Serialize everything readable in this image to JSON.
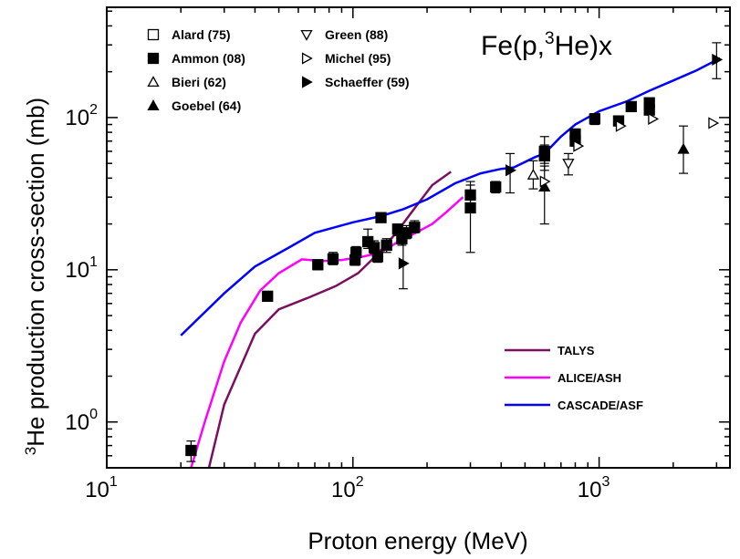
{
  "chart_data": {
    "type": "scatter",
    "title_main": "Fe(p,",
    "title_sup": "3",
    "title_rest": "He)x",
    "xlabel": "Proton energy (MeV)",
    "ylabel_sup": "3",
    "ylabel_main": "He production cross-section (mb)",
    "x_scale": "log",
    "y_scale": "log",
    "xlim": [
      10,
      3400
    ],
    "ylim": [
      0.5,
      530
    ],
    "x_ticks": [
      {
        "value": 10,
        "base": "10",
        "exp": "1"
      },
      {
        "value": 100,
        "base": "10",
        "exp": "2"
      },
      {
        "value": 1000,
        "base": "10",
        "exp": "3"
      }
    ],
    "y_ticks": [
      {
        "value": 1,
        "base": "10",
        "exp": "0"
      },
      {
        "value": 10,
        "base": "10",
        "exp": "1"
      },
      {
        "value": 100,
        "base": "10",
        "exp": "2"
      }
    ],
    "grid": false,
    "legend_position": "top-left",
    "series": [
      {
        "name": "Alard (75)",
        "marker": "square-open",
        "points": []
      },
      {
        "name": "Ammon (08)",
        "marker": "square-filled",
        "points": [
          {
            "x": 22,
            "y": 0.65,
            "err": [
              0.55,
              0.75
            ]
          },
          {
            "x": 45,
            "y": 6.7
          },
          {
            "x": 72,
            "y": 10.8,
            "err": [
              10.0,
              11.5
            ]
          },
          {
            "x": 83,
            "y": 11.8,
            "err": [
              10.8,
              13.0
            ]
          },
          {
            "x": 102,
            "y": 11.6,
            "err": [
              10.7,
              12.8
            ]
          },
          {
            "x": 103,
            "y": 13.0,
            "err": [
              12.0,
              14.2
            ]
          },
          {
            "x": 115,
            "y": 15.3,
            "err": [
              13.8,
              18.5
            ]
          },
          {
            "x": 122,
            "y": 14.0,
            "err": [
              12.8,
              15.5
            ]
          },
          {
            "x": 126,
            "y": 12.2,
            "err": [
              11.2,
              13.2
            ]
          },
          {
            "x": 130,
            "y": 22.0,
            "err": [
              20.5,
              23.5
            ]
          },
          {
            "x": 137,
            "y": 14.5,
            "err": [
              13.0,
              16.0
            ]
          },
          {
            "x": 152,
            "y": 18.5,
            "err": [
              16.8,
              20.0
            ]
          },
          {
            "x": 158,
            "y": 16.0,
            "err": [
              14.5,
              17.5
            ]
          },
          {
            "x": 165,
            "y": 17.5,
            "err": [
              16.0,
              19.5
            ]
          },
          {
            "x": 178,
            "y": 19.0,
            "err": [
              17.5,
              21.0
            ]
          },
          {
            "x": 300,
            "y": 31.0,
            "err": [
              27.0,
              36.0
            ]
          },
          {
            "x": 300,
            "y": 25.5,
            "err": [
              13.0,
              38.0
            ]
          },
          {
            "x": 380,
            "y": 35.0,
            "err": [
              32.0,
              38.0
            ]
          },
          {
            "x": 600,
            "y": 60.0,
            "err": [
              50.0,
              75.0
            ]
          },
          {
            "x": 600,
            "y": 56.0,
            "err": [
              45.0,
              66.0
            ]
          },
          {
            "x": 800,
            "y": 70.0,
            "err": [
              66.0,
              75.0
            ]
          },
          {
            "x": 800,
            "y": 78.0,
            "err": [
              73.0,
              84.0
            ]
          },
          {
            "x": 960,
            "y": 98.0,
            "err": [
              90.0,
              106.0
            ]
          },
          {
            "x": 1200,
            "y": 95.0,
            "err": [
              90.0,
              100.0
            ]
          },
          {
            "x": 1350,
            "y": 118.0,
            "err": [
              110.0,
              126.0
            ]
          },
          {
            "x": 1600,
            "y": 112.0,
            "err": [
              105.0,
              120.0
            ]
          },
          {
            "x": 1600,
            "y": 125.0,
            "err": [
              118.0,
              132.0
            ]
          }
        ]
      },
      {
        "name": "Bieri (62)",
        "marker": "triangle-up-open",
        "points": [
          {
            "x": 540,
            "y": 42.0,
            "err": [
              34.0,
              52.0
            ]
          }
        ]
      },
      {
        "name": "Goebel (64)",
        "marker": "triangle-up-filled",
        "points": [
          {
            "x": 600,
            "y": 35.0,
            "err": [
              20.0,
              48.0
            ]
          },
          {
            "x": 2200,
            "y": 62.0,
            "err": [
              43.0,
              88.0
            ]
          }
        ]
      },
      {
        "name": "Green (88)",
        "marker": "triangle-down-open",
        "points": [
          {
            "x": 750,
            "y": 50.0,
            "err": [
              42.0,
              58.0
            ]
          }
        ]
      },
      {
        "name": "Michel (95)",
        "marker": "triangle-right-open",
        "points": [
          {
            "x": 600,
            "y": 38.0
          },
          {
            "x": 820,
            "y": 65.0
          },
          {
            "x": 1220,
            "y": 88.0
          },
          {
            "x": 1650,
            "y": 98.0
          },
          {
            "x": 2900,
            "y": 92.0
          }
        ]
      },
      {
        "name": "Schaeffer (59)",
        "marker": "triangle-right-filled",
        "points": [
          {
            "x": 160,
            "y": 11.0,
            "err": [
              7.5,
              16.0
            ]
          },
          {
            "x": 435,
            "y": 45.0,
            "err": [
              32.0,
              58.0
            ]
          },
          {
            "x": 3000,
            "y": 240.0,
            "err": [
              180.0,
              310.0
            ]
          }
        ]
      }
    ],
    "models": [
      {
        "name": "TALYS",
        "color": "#7b1060",
        "points": [
          [
            26,
            0.5
          ],
          [
            30,
            1.3
          ],
          [
            40,
            3.8
          ],
          [
            50,
            5.5
          ],
          [
            65,
            6.5
          ],
          [
            85,
            7.8
          ],
          [
            105,
            9.5
          ],
          [
            125,
            12.5
          ],
          [
            150,
            17.5
          ],
          [
            180,
            26.0
          ],
          [
            210,
            36.0
          ],
          [
            250,
            44.0
          ]
        ]
      },
      {
        "name": "ALICE/ASH",
        "color": "#ff00ff",
        "points": [
          [
            22,
            0.5
          ],
          [
            25,
            1.0
          ],
          [
            30,
            2.5
          ],
          [
            35,
            4.5
          ],
          [
            42,
            7.3
          ],
          [
            50,
            9.5
          ],
          [
            62,
            11.7
          ],
          [
            75,
            11.4
          ],
          [
            90,
            11.6
          ],
          [
            110,
            12.2
          ],
          [
            130,
            13.0
          ],
          [
            150,
            15.0
          ],
          [
            180,
            17.5
          ],
          [
            210,
            20.0
          ],
          [
            240,
            24.0
          ],
          [
            280,
            30.0
          ]
        ]
      },
      {
        "name": "CASCADE/ASF",
        "color": "#0000ff",
        "points": [
          [
            20,
            3.7
          ],
          [
            30,
            7.0
          ],
          [
            40,
            10.5
          ],
          [
            55,
            14.0
          ],
          [
            70,
            17.5
          ],
          [
            100,
            20.5
          ],
          [
            130,
            22.5
          ],
          [
            160,
            25.0
          ],
          [
            200,
            29.0
          ],
          [
            260,
            37.0
          ],
          [
            330,
            43.0
          ],
          [
            400,
            46.0
          ],
          [
            450,
            47.0
          ],
          [
            550,
            55.0
          ],
          [
            600,
            58.0
          ],
          [
            700,
            75.0
          ],
          [
            800,
            90.0
          ],
          [
            1000,
            110.0
          ],
          [
            1300,
            128.0
          ],
          [
            1600,
            150.0
          ],
          [
            2000,
            175.0
          ],
          [
            2500,
            205.0
          ],
          [
            3100,
            245.0
          ]
        ]
      }
    ]
  }
}
